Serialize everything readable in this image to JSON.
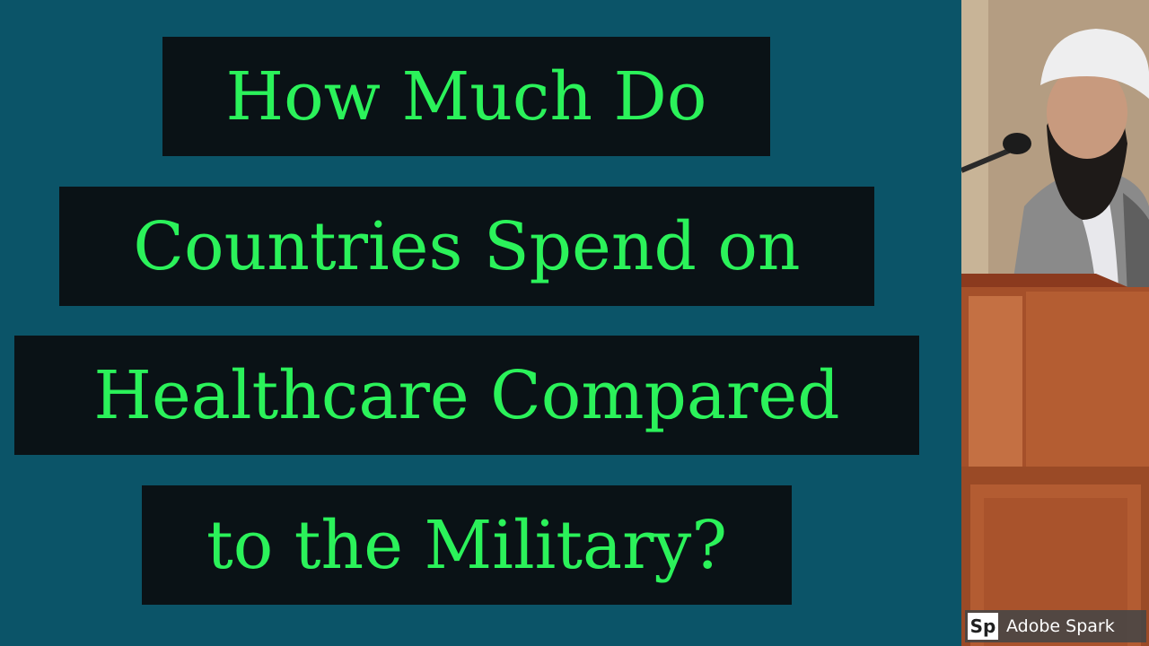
{
  "title_lines": [
    "How Much Do",
    "Countries Spend on",
    "Healthcare Compared",
    "to the Military?"
  ],
  "badge": {
    "logo_text": "Sp",
    "label": "Adobe Spark"
  },
  "colors": {
    "background": "#0b5468",
    "title_box": "#0a1216",
    "title_text": "#2bf25a"
  }
}
